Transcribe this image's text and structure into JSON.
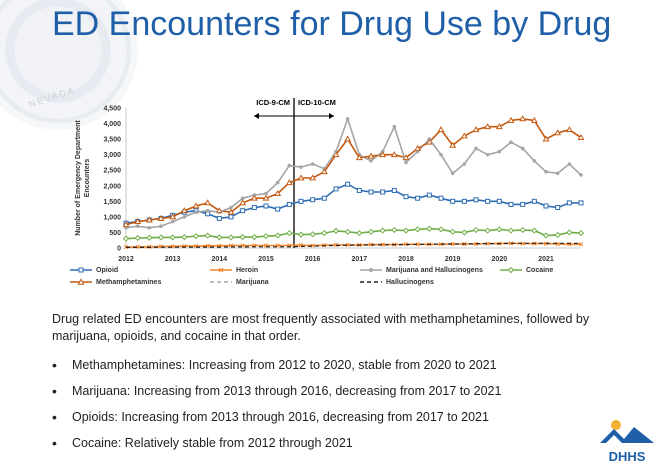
{
  "title": "ED Encounters for Drug Use by Drug",
  "seal_text": "NEVADA",
  "summary": "Drug related ED encounters are most frequently associated with methamphetamines, followed by marijuana, opioids, and cocaine in that order.",
  "bullets": [
    "Methamphetamines: Increasing from 2012 to 2020, stable from 2020 to 2021",
    "Marijuana: Increasing from 2013 through 2016, decreasing from 2017 to 2021",
    "Opioids: Increasing from 2013 through 2016, decreasing from 2017 to 2021",
    "Cocaine: Relatively stable from 2012 through 2021"
  ],
  "logo_text": "DHHS",
  "chart_data": {
    "type": "line",
    "ylabel": "Number of Emergency Department Encounters",
    "ylim": [
      0,
      4500
    ],
    "yticks": [
      "0",
      "500",
      "1,000",
      "1,500",
      "2,000",
      "2,500",
      "3,000",
      "3,500",
      "4,000",
      "4,500"
    ],
    "xticks": [
      "2012",
      "2013",
      "2014",
      "2015",
      "2016",
      "2017",
      "2018",
      "2019",
      "2020",
      "2021"
    ],
    "xlim": [
      2012,
      2021.75
    ],
    "annotation_left": "ICD-9-CM",
    "annotation_right": "ICD-10-CM",
    "annotation_x": 2015.6,
    "legend_position": "bottom",
    "x": [
      2012.0,
      2012.25,
      2012.5,
      2012.75,
      2013.0,
      2013.25,
      2013.5,
      2013.75,
      2014.0,
      2014.25,
      2014.5,
      2014.75,
      2015.0,
      2015.25,
      2015.5,
      2015.75,
      2016.0,
      2016.25,
      2016.5,
      2016.75,
      2017.0,
      2017.25,
      2017.5,
      2017.75,
      2018.0,
      2018.25,
      2018.5,
      2018.75,
      2019.0,
      2019.25,
      2019.5,
      2019.75,
      2020.0,
      2020.25,
      2020.5,
      2020.75,
      2021.0,
      2021.25,
      2021.5,
      2021.75
    ],
    "series": [
      {
        "name": "Opioid",
        "color": "#2e6db4",
        "marker": "square",
        "dash": false,
        "values": [
          800,
          850,
          900,
          950,
          1050,
          1150,
          1200,
          1100,
          950,
          1000,
          1200,
          1300,
          1350,
          1250,
          1400,
          1500,
          1550,
          1600,
          1900,
          2050,
          1850,
          1800,
          1800,
          1850,
          1650,
          1600,
          1700,
          1600,
          1500,
          1500,
          1550,
          1500,
          1500,
          1400,
          1400,
          1500,
          1350,
          1300,
          1450,
          1450
        ]
      },
      {
        "name": "Heroin",
        "color": "#f0852d",
        "marker": "x",
        "dash": false,
        "values": [
          30,
          40,
          40,
          50,
          50,
          60,
          60,
          70,
          70,
          80,
          80,
          80,
          80,
          80,
          80,
          90,
          80,
          90,
          100,
          100,
          100,
          110,
          110,
          110,
          120,
          120,
          120,
          120,
          130,
          130,
          130,
          140,
          140,
          150,
          140,
          140,
          140,
          130,
          120,
          120
        ]
      },
      {
        "name": "Marijuana and Hallucinogens",
        "color": "#a6a6a6",
        "marker": "circle",
        "dash": false,
        "values": [
          650,
          700,
          650,
          700,
          850,
          1000,
          1150,
          1200,
          1150,
          1300,
          1600,
          1700,
          1750,
          2100,
          2650,
          2600,
          2700,
          2550,
          3100,
          4150,
          3000,
          2800,
          3100,
          3900,
          2750,
          3100,
          3500,
          3000,
          2400,
          2700,
          3200,
          3000,
          3100,
          3400,
          3200,
          2800,
          2450,
          2400,
          2700,
          2350
        ]
      },
      {
        "name": "Cocaine",
        "color": "#70ad47",
        "marker": "diamond",
        "dash": false,
        "values": [
          300,
          320,
          330,
          340,
          340,
          350,
          380,
          400,
          340,
          340,
          350,
          350,
          380,
          400,
          480,
          430,
          440,
          480,
          550,
          520,
          480,
          520,
          560,
          580,
          560,
          600,
          620,
          600,
          520,
          500,
          580,
          560,
          600,
          560,
          580,
          560,
          400,
          420,
          500,
          480
        ]
      },
      {
        "name": "Methamphetamines",
        "color": "#c55a11",
        "marker": "triangle",
        "dash": false,
        "values": [
          750,
          850,
          900,
          950,
          1000,
          1200,
          1350,
          1450,
          1200,
          1150,
          1450,
          1600,
          1600,
          1750,
          2100,
          2250,
          2250,
          2450,
          3000,
          3500,
          2900,
          2950,
          3000,
          3000,
          2900,
          3200,
          3400,
          3800,
          3300,
          3600,
          3800,
          3900,
          3900,
          4100,
          4150,
          4100,
          3500,
          3700,
          3800,
          3550
        ]
      },
      {
        "name": "Marijuana",
        "color": "#a6a6a6",
        "marker": "none",
        "dash": true,
        "values": [
          650,
          700,
          650,
          700,
          850,
          1000,
          1150,
          1200,
          1150,
          1300,
          1600,
          1700,
          1750,
          2100,
          2650,
          2600,
          2700,
          2550,
          3100,
          4150,
          3000,
          2800,
          3100,
          3900,
          2750,
          3100,
          3500,
          3000,
          2400,
          2700,
          3200,
          3000,
          3100,
          3400,
          3200,
          2800,
          2450,
          2400,
          2700,
          2350
        ]
      },
      {
        "name": "Hallucinogens",
        "color": "#222222",
        "marker": "none",
        "dash": true,
        "values": [
          20,
          20,
          20,
          25,
          25,
          30,
          30,
          30,
          30,
          35,
          35,
          40,
          40,
          40,
          40,
          50,
          60,
          70,
          80,
          90,
          90,
          100,
          100,
          110,
          110,
          120,
          120,
          130,
          130,
          130,
          140,
          140,
          140,
          150,
          150,
          150,
          150,
          150,
          150,
          150
        ]
      }
    ]
  }
}
